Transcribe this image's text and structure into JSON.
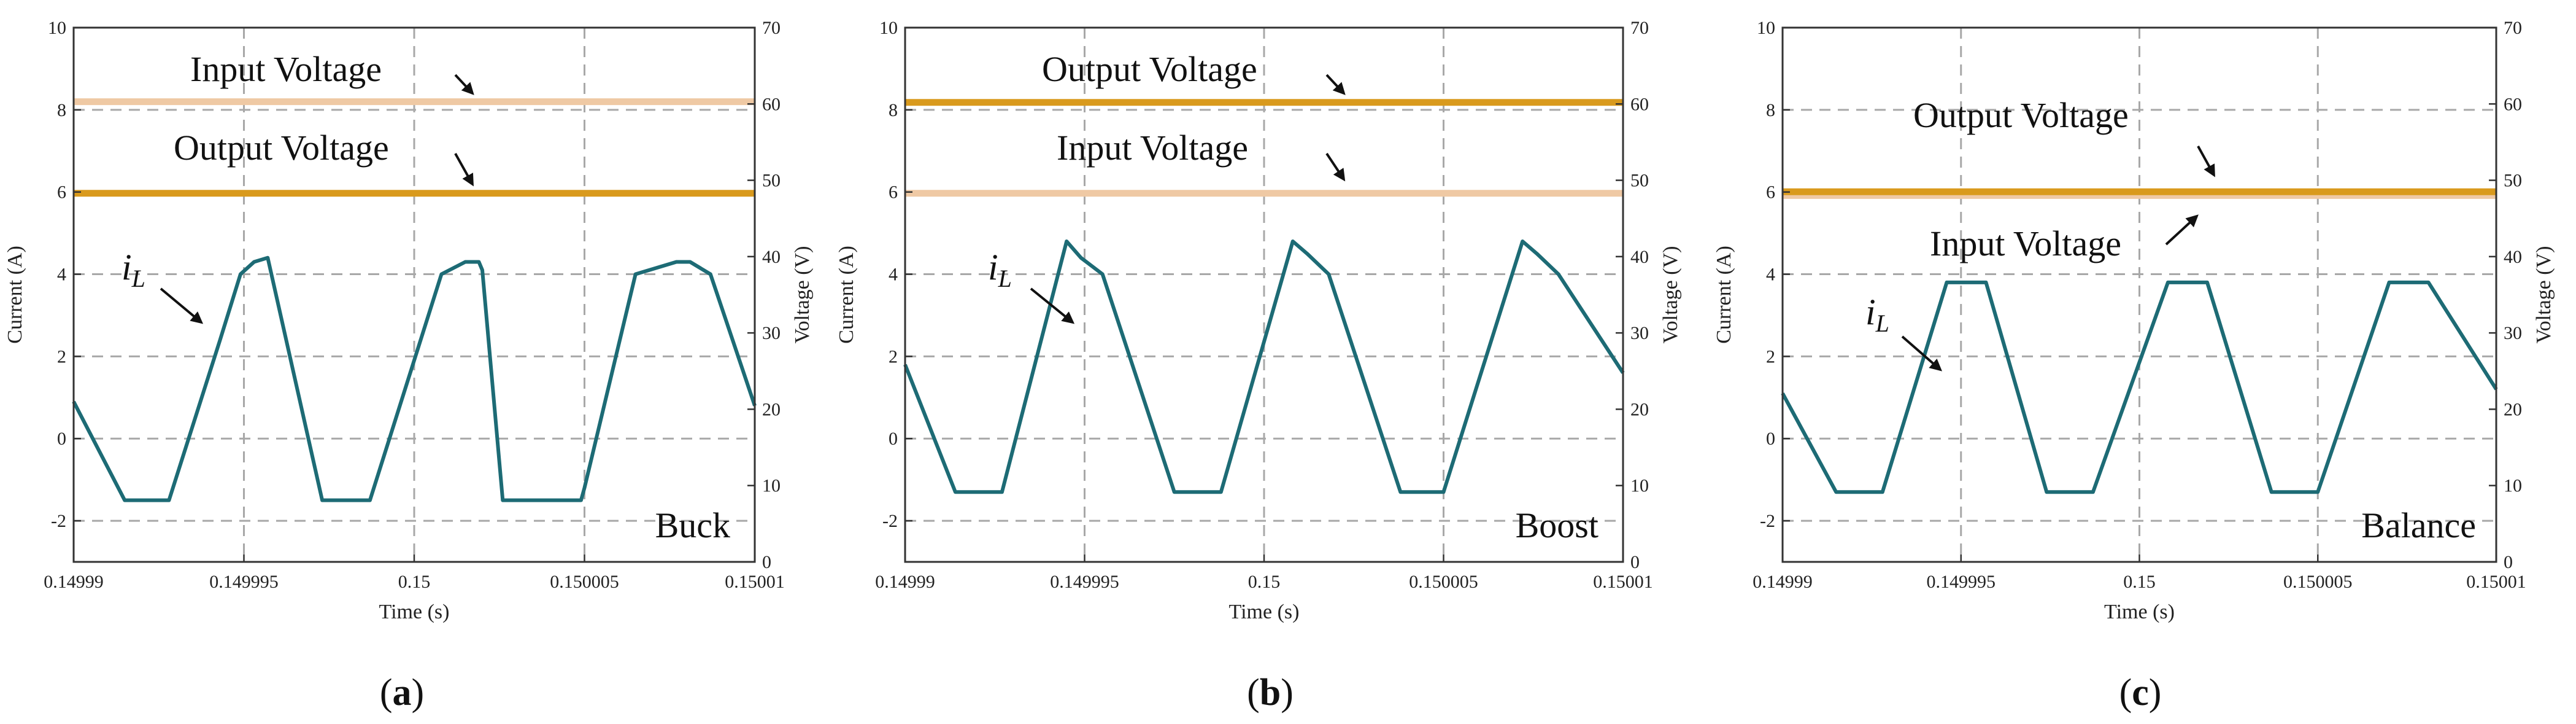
{
  "colors": {
    "current": "#1d6b75",
    "input_voltage": "#efc9a4",
    "output_voltage": "#d99a1d",
    "grid": "#a8a8a8",
    "axis": "#333333",
    "arrow": "#111111"
  },
  "chart_data": [
    {
      "type": "line",
      "panel_label": "a",
      "mode_label": "Buck",
      "xlabel": "Time (s)",
      "ylabel_left": "Current (A)",
      "ylabel_right": "Voltage (V)",
      "xlim": [
        0.14999,
        0.15001
      ],
      "ylim_left": [
        -3,
        10
      ],
      "ylim_right": [
        0,
        70
      ],
      "x_ticks": [
        0.14999,
        0.149995,
        0.15,
        0.150005,
        0.15001
      ],
      "x_tick_labels": [
        "0.14999",
        "0.149995",
        "0.15",
        "0.150005",
        "0.15001"
      ],
      "y_left_ticks": [
        -2,
        0,
        2,
        4,
        6,
        8,
        10
      ],
      "y_left_tick_labels": [
        "-2",
        "0",
        "2",
        "4",
        "6",
        "8",
        "10"
      ],
      "y_right_ticks": [
        0,
        10,
        20,
        30,
        40,
        50,
        60,
        70
      ],
      "y_right_tick_labels": [
        "0",
        "10",
        "20",
        "30",
        "40",
        "50",
        "60",
        "70"
      ],
      "grid": true,
      "series": [
        {
          "name": "i_L",
          "axis": "left",
          "x": [
            0.14999,
            0.1499915,
            0.1499928,
            0.1499943,
            0.1499949,
            0.1499953,
            0.1499957,
            0.1499973,
            0.1499978,
            0.1499987,
            0.1500008,
            0.1500015,
            0.1500019,
            0.150002,
            0.1500026,
            0.1500038,
            0.1500049,
            0.150005,
            0.1500065,
            0.1500077,
            0.1500081,
            0.1500087,
            0.15001
          ],
          "y": [
            0.9,
            -1.5,
            -1.5,
            2.4,
            4.0,
            4.3,
            4.4,
            -1.5,
            -1.5,
            -1.5,
            4.0,
            4.3,
            4.3,
            4.1,
            -1.5,
            -1.5,
            -1.5,
            -1.2,
            4.0,
            4.3,
            4.3,
            4.0,
            0.8
          ]
        },
        {
          "name": "Input Voltage",
          "axis": "right",
          "x": [
            0.14999,
            0.15001
          ],
          "y": [
            60.3,
            60.3
          ]
        },
        {
          "name": "Output Voltage",
          "axis": "right",
          "x": [
            0.14999,
            0.15001
          ],
          "y": [
            48.3,
            48.3
          ]
        }
      ],
      "annotations": [
        {
          "text": "Input Voltage",
          "target": "Input Voltage"
        },
        {
          "text": "Output Voltage",
          "target": "Output Voltage"
        },
        {
          "text": "i",
          "sub": "L",
          "target": "i_L"
        }
      ]
    },
    {
      "type": "line",
      "panel_label": "b",
      "mode_label": "Boost",
      "xlabel": "Time (s)",
      "ylabel_left": "Current (A)",
      "ylabel_right": "Voltage (V)",
      "xlim": [
        0.14999,
        0.15001
      ],
      "ylim_left": [
        -3,
        10
      ],
      "ylim_right": [
        0,
        70
      ],
      "x_ticks": [
        0.14999,
        0.149995,
        0.15,
        0.150005,
        0.15001
      ],
      "x_tick_labels": [
        "0.14999",
        "0.149995",
        "0.15",
        "0.150005",
        "0.15001"
      ],
      "y_left_ticks": [
        -2,
        0,
        2,
        4,
        6,
        8,
        10
      ],
      "y_left_tick_labels": [
        "-2",
        "0",
        "2",
        "4",
        "6",
        "8",
        "10"
      ],
      "y_right_ticks": [
        0,
        10,
        20,
        30,
        40,
        50,
        60,
        70
      ],
      "y_right_tick_labels": [
        "0",
        "10",
        "20",
        "30",
        "40",
        "50",
        "60",
        "70"
      ],
      "grid": true,
      "series": [
        {
          "name": "i_L",
          "axis": "left",
          "x": [
            0.14999,
            0.1499914,
            0.1499927,
            0.1499945,
            0.1499949,
            0.1499955,
            0.1499975,
            0.1499988,
            0.1500008,
            0.1500012,
            0.1500018,
            0.1500038,
            0.150005,
            0.1500072,
            0.1500076,
            0.1500082,
            0.15001
          ],
          "y": [
            1.8,
            -1.3,
            -1.3,
            4.8,
            4.4,
            4.0,
            -1.3,
            -1.3,
            4.8,
            4.5,
            4.0,
            -1.3,
            -1.3,
            4.8,
            4.5,
            4.0,
            1.6
          ]
        },
        {
          "name": "Output Voltage",
          "axis": "right",
          "x": [
            0.14999,
            0.15001
          ],
          "y": [
            60.2,
            60.2
          ]
        },
        {
          "name": "Input Voltage",
          "axis": "right",
          "x": [
            0.14999,
            0.15001
          ],
          "y": [
            48.3,
            48.3
          ]
        }
      ],
      "annotations": [
        {
          "text": "Output Voltage",
          "target": "Output Voltage"
        },
        {
          "text": "Input Voltage",
          "target": "Input Voltage"
        },
        {
          "text": "i",
          "sub": "L",
          "target": "i_L"
        }
      ]
    },
    {
      "type": "line",
      "panel_label": "c",
      "mode_label": "Balance",
      "xlabel": "Time (s)",
      "ylabel_left": "Current (A)",
      "ylabel_right": "Voltage (V)",
      "xlim": [
        0.14999,
        0.15001
      ],
      "ylim_left": [
        -3,
        10
      ],
      "ylim_right": [
        0,
        70
      ],
      "x_ticks": [
        0.14999,
        0.149995,
        0.15,
        0.150005,
        0.15001
      ],
      "x_tick_labels": [
        "0.14999",
        "0.149995",
        "0.15",
        "0.150005",
        "0.15001"
      ],
      "y_left_ticks": [
        -2,
        0,
        2,
        4,
        6,
        8,
        10
      ],
      "y_left_tick_labels": [
        "-2",
        "0",
        "2",
        "4",
        "6",
        "8",
        "10"
      ],
      "y_right_ticks": [
        0,
        10,
        20,
        30,
        40,
        50,
        60,
        70
      ],
      "y_right_tick_labels": [
        "0",
        "10",
        "20",
        "30",
        "40",
        "50",
        "60",
        "70"
      ],
      "grid": true,
      "series": [
        {
          "name": "i_L",
          "axis": "left",
          "x": [
            0.14999,
            0.1499915,
            0.1499928,
            0.1499946,
            0.1499957,
            0.1499974,
            0.1499987,
            0.1500008,
            0.1500019,
            0.1500037,
            0.150005,
            0.150007,
            0.1500081,
            0.15001
          ],
          "y": [
            1.1,
            -1.3,
            -1.3,
            3.8,
            3.8,
            -1.3,
            -1.3,
            3.8,
            3.8,
            -1.3,
            -1.3,
            3.8,
            3.8,
            1.2
          ]
        },
        {
          "name": "Output Voltage",
          "axis": "right",
          "x": [
            0.14999,
            0.15001
          ],
          "y": [
            48.5,
            48.5
          ]
        },
        {
          "name": "Input Voltage",
          "axis": "right",
          "x": [
            0.14999,
            0.15001
          ],
          "y": [
            48.0,
            48.0
          ]
        }
      ],
      "annotations": [
        {
          "text": "Output Voltage",
          "target": "Output Voltage"
        },
        {
          "text": "Input Voltage",
          "target": "Input Voltage"
        },
        {
          "text": "i",
          "sub": "L",
          "target": "i_L"
        }
      ]
    }
  ]
}
